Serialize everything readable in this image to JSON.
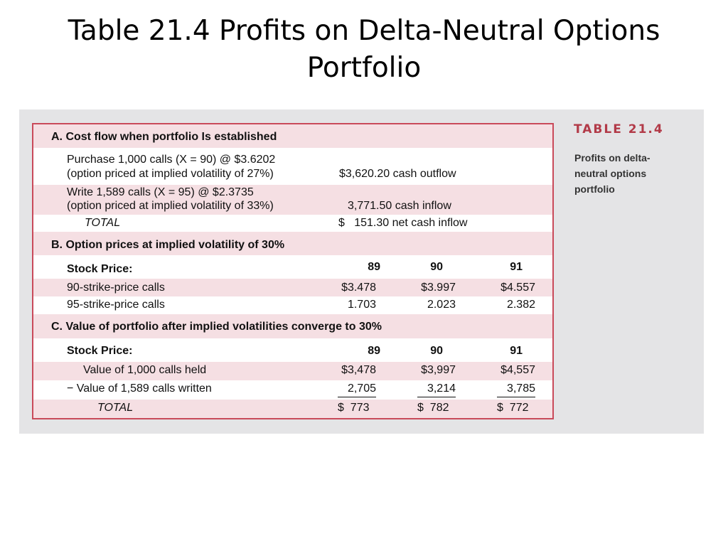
{
  "slide": {
    "title_line1": "Table 21.4 Profits on Delta-Neutral Options",
    "title_line2": "Portfolio"
  },
  "sidebar": {
    "table_number": "TABLE 21.4",
    "caption_lines": [
      "Profits on delta-",
      "neutral options",
      "portfolio"
    ]
  },
  "section_a": {
    "heading": "A. Cost flow when portfolio Is established",
    "purchase_line1": "Purchase 1,000 calls (X = 90) @ $3.6202",
    "purchase_line2": "(option priced at implied volatility of 27%)",
    "purchase_value": "$3,620.20 cash outflow",
    "write_line1": "Write 1,589 calls (X = 95) @ $2.3735",
    "write_line2": "(option priced at implied volatility of 33%)",
    "write_value": "3,771.50 cash inflow",
    "total_label": "TOTAL",
    "total_value": "$   151.30 net cash inflow"
  },
  "section_b": {
    "heading": "B. Option prices at implied volatility of 30%",
    "stock_price_label": "Stock Price:",
    "stock_prices": [
      "89",
      "90",
      "91"
    ],
    "rows": [
      {
        "label": "90-strike-price calls",
        "values": [
          "$3.478",
          "$3.997",
          "$4.557"
        ]
      },
      {
        "label": "95-strike-price calls",
        "values": [
          "1.703",
          "2.023",
          "2.382"
        ]
      }
    ]
  },
  "section_c": {
    "heading": "C. Value of portfolio after implied volatilities converge to 30%",
    "stock_price_label": "Stock Price:",
    "stock_prices": [
      "89",
      "90",
      "91"
    ],
    "rows": [
      {
        "label": "Value of 1,000 calls held",
        "values": [
          "$3,478",
          "$3,997",
          "$4,557"
        ]
      },
      {
        "label": "− Value of 1,589 calls written",
        "values": [
          "2,705",
          "3,214",
          "3,785"
        ]
      }
    ],
    "total_label": "TOTAL",
    "total_values": [
      "$  773",
      "$  782",
      "$  772"
    ]
  },
  "colors": {
    "border": "#c94a5a",
    "band": "#f5dfe3",
    "panel": "#e4e4e6",
    "accent": "#b23a48"
  }
}
